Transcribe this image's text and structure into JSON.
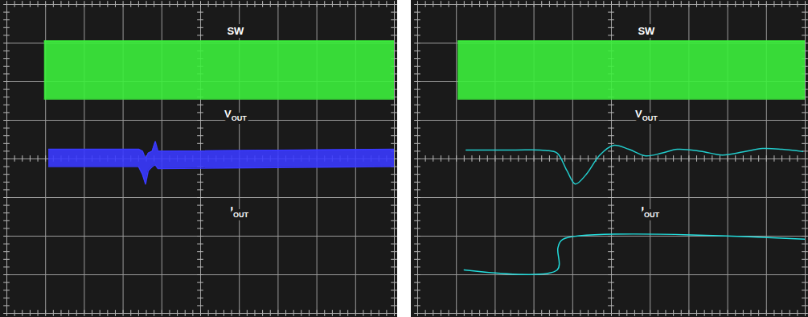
{
  "chart_data": [
    {
      "type": "line",
      "tick_labels": false,
      "grid": true,
      "xlim": [
        0,
        10
      ],
      "ylim": [
        0,
        8
      ],
      "xticks": [
        0,
        1,
        2,
        3,
        4,
        5,
        6,
        7,
        8,
        9,
        10
      ],
      "yticks": [
        0,
        1,
        2,
        3,
        4,
        5,
        6,
        7,
        8
      ],
      "series": [
        {
          "name": "SW",
          "type": "area",
          "color": "#3cf03c",
          "x": [
            0.97,
            10
          ],
          "lower": [
            5.55,
            5.55
          ],
          "upper": [
            7.05,
            7.05
          ]
        },
        {
          "name": "VOUT",
          "type": "area",
          "color": "#3a3aff",
          "x": [
            1.08,
            3.4,
            3.5,
            3.58,
            3.65,
            3.75,
            3.83,
            3.9,
            10
          ],
          "lower": [
            3.8,
            3.8,
            3.6,
            3.35,
            3.7,
            3.8,
            3.85,
            3.75,
            3.8
          ],
          "upper": [
            4.25,
            4.25,
            4.2,
            4.0,
            4.15,
            4.2,
            4.45,
            4.2,
            4.25
          ]
        },
        {
          "name": "IOUT",
          "type": "line",
          "color": "#22dddd",
          "x": [],
          "values": []
        }
      ]
    },
    {
      "type": "line",
      "tick_labels": false,
      "grid": true,
      "xlim": [
        0,
        10
      ],
      "ylim": [
        0,
        8
      ],
      "xticks": [
        0,
        1,
        2,
        3,
        4,
        5,
        6,
        7,
        8,
        9,
        10
      ],
      "yticks": [
        0,
        1,
        2,
        3,
        4,
        5,
        6,
        7,
        8
      ],
      "series": [
        {
          "name": "SW",
          "type": "area",
          "color": "#3cf03c",
          "x": [
            1.04,
            10
          ],
          "lower": [
            5.55,
            5.55
          ],
          "upper": [
            7.05,
            7.05
          ]
        },
        {
          "name": "VOUT",
          "type": "line",
          "color": "#22cccc",
          "x": [
            1.25,
            2.5,
            3.3,
            3.6,
            3.85,
            4.07,
            4.35,
            4.7,
            5.05,
            5.45,
            5.88,
            6.3,
            6.7,
            7.3,
            7.86,
            8.4,
            8.9,
            9.4,
            9.94
          ],
          "values": [
            4.23,
            4.23,
            4.22,
            4.15,
            3.7,
            3.35,
            3.6,
            4.1,
            4.35,
            4.25,
            4.08,
            4.15,
            4.25,
            4.2,
            4.1,
            4.18,
            4.27,
            4.25,
            4.19
          ]
        },
        {
          "name": "IOUT",
          "type": "line",
          "color": "#22dddd",
          "x": [
            1.2,
            3.6,
            3.62,
            3.75,
            9.98
          ],
          "values": [
            1.125,
            1.125,
            1.7,
            1.92,
            1.92
          ]
        }
      ]
    }
  ]
}
